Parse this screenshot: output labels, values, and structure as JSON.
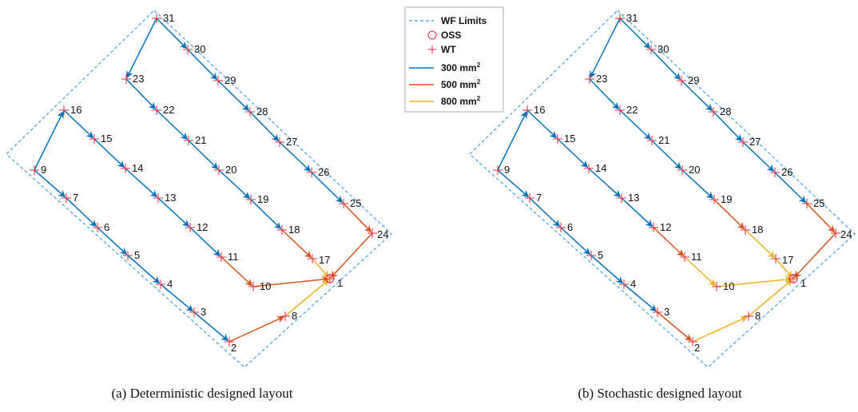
{
  "legend": {
    "limits": "WF Limits",
    "oss": "OSS",
    "wt": "WT",
    "cable_unit": "mm",
    "cable_exp": "2",
    "cables": [
      {
        "key": "c300",
        "label": "300",
        "color": "#0072BD"
      },
      {
        "key": "c500",
        "label": "500",
        "color": "#D95319"
      },
      {
        "key": "c800",
        "label": "800",
        "color": "#EDB120"
      }
    ],
    "limits_color": "#3399dd",
    "marker_color": "#e8273a"
  },
  "panels": [
    {
      "caption": "(a)  Deterministic designed layout",
      "oss_id": "1",
      "turbines": [
        "1",
        "2",
        "3",
        "4",
        "5",
        "6",
        "7",
        "8",
        "9",
        "10",
        "11",
        "12",
        "13",
        "14",
        "15",
        "16",
        "17",
        "18",
        "19",
        "20",
        "21",
        "22",
        "23",
        "24",
        "25",
        "26",
        "27",
        "28",
        "29",
        "30",
        "31"
      ],
      "edges": [
        [
          "9",
          "16",
          "c300"
        ],
        [
          "16",
          "15",
          "c300"
        ],
        [
          "15",
          "14",
          "c300"
        ],
        [
          "14",
          "13",
          "c300"
        ],
        [
          "13",
          "12",
          "c300"
        ],
        [
          "12",
          "11",
          "c300"
        ],
        [
          "11",
          "10",
          "c500"
        ],
        [
          "10",
          "1",
          "c500"
        ],
        [
          "9",
          "7",
          "c300"
        ],
        [
          "7",
          "6",
          "c300"
        ],
        [
          "6",
          "5",
          "c300"
        ],
        [
          "5",
          "4",
          "c300"
        ],
        [
          "4",
          "3",
          "c300"
        ],
        [
          "3",
          "2",
          "c300"
        ],
        [
          "2",
          "8",
          "c500"
        ],
        [
          "8",
          "1",
          "c800"
        ],
        [
          "23",
          "22",
          "c300"
        ],
        [
          "22",
          "21",
          "c300"
        ],
        [
          "21",
          "20",
          "c300"
        ],
        [
          "20",
          "19",
          "c300"
        ],
        [
          "19",
          "18",
          "c300"
        ],
        [
          "18",
          "17",
          "c500"
        ],
        [
          "17",
          "1",
          "c800"
        ],
        [
          "31",
          "23",
          "c300"
        ],
        [
          "31",
          "30",
          "c300"
        ],
        [
          "30",
          "29",
          "c300"
        ],
        [
          "29",
          "28",
          "c300"
        ],
        [
          "28",
          "27",
          "c300"
        ],
        [
          "27",
          "26",
          "c300"
        ],
        [
          "26",
          "25",
          "c300"
        ],
        [
          "25",
          "24",
          "c500"
        ],
        [
          "24",
          "1",
          "c500"
        ]
      ]
    },
    {
      "caption": "(b)  Stochastic designed layout",
      "oss_id": "1",
      "turbines": [
        "1",
        "2",
        "3",
        "4",
        "5",
        "6",
        "7",
        "8",
        "9",
        "10",
        "11",
        "12",
        "13",
        "14",
        "15",
        "16",
        "17",
        "18",
        "19",
        "20",
        "21",
        "22",
        "23",
        "24",
        "25",
        "26",
        "27",
        "28",
        "29",
        "30",
        "31"
      ],
      "edges": [
        [
          "9",
          "16",
          "c300"
        ],
        [
          "16",
          "15",
          "c300"
        ],
        [
          "15",
          "14",
          "c300"
        ],
        [
          "14",
          "13",
          "c300"
        ],
        [
          "13",
          "12",
          "c300"
        ],
        [
          "12",
          "11",
          "c500"
        ],
        [
          "11",
          "10",
          "c800"
        ],
        [
          "10",
          "1",
          "c800"
        ],
        [
          "9",
          "7",
          "c300"
        ],
        [
          "7",
          "6",
          "c300"
        ],
        [
          "6",
          "5",
          "c300"
        ],
        [
          "5",
          "4",
          "c300"
        ],
        [
          "4",
          "3",
          "c300"
        ],
        [
          "3",
          "2",
          "c500"
        ],
        [
          "2",
          "8",
          "c800"
        ],
        [
          "8",
          "1",
          "c800"
        ],
        [
          "23",
          "22",
          "c300"
        ],
        [
          "22",
          "21",
          "c300"
        ],
        [
          "21",
          "20",
          "c300"
        ],
        [
          "20",
          "19",
          "c300"
        ],
        [
          "19",
          "18",
          "c500"
        ],
        [
          "18",
          "17",
          "c800"
        ],
        [
          "17",
          "1",
          "c800"
        ],
        [
          "31",
          "23",
          "c300"
        ],
        [
          "31",
          "30",
          "c300"
        ],
        [
          "30",
          "29",
          "c300"
        ],
        [
          "29",
          "28",
          "c300"
        ],
        [
          "28",
          "27",
          "c300"
        ],
        [
          "27",
          "26",
          "c300"
        ],
        [
          "26",
          "25",
          "c300"
        ],
        [
          "25",
          "24",
          "c500"
        ],
        [
          "24",
          "1",
          "c500"
        ]
      ]
    }
  ]
}
